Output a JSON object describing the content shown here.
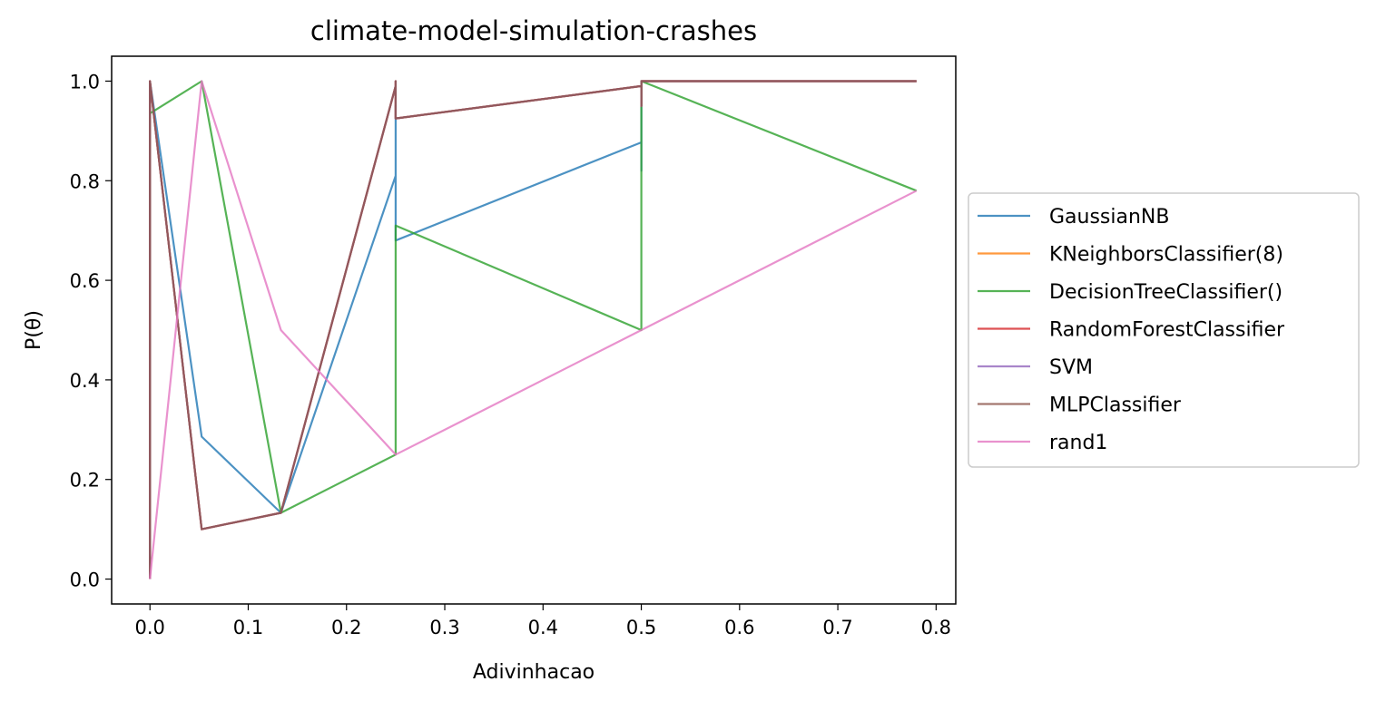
{
  "chart_data": {
    "type": "line",
    "title": "climate-model-simulation-crashes",
    "xlabel": "Adivinhacao",
    "ylabel": "P(θ)",
    "xlim": [
      -0.039,
      0.82
    ],
    "ylim": [
      -0.05,
      1.05
    ],
    "xticks": [
      0.0,
      0.1,
      0.2,
      0.3,
      0.4,
      0.5,
      0.6,
      0.7,
      0.8
    ],
    "xtick_labels": [
      "0.0",
      "0.1",
      "0.2",
      "0.3",
      "0.4",
      "0.5",
      "0.6",
      "0.7",
      "0.8"
    ],
    "yticks": [
      0.0,
      0.2,
      0.4,
      0.6,
      0.8,
      1.0
    ],
    "ytick_labels": [
      "0.0",
      "0.2",
      "0.4",
      "0.6",
      "0.8",
      "1.0"
    ],
    "grid": false,
    "legend_placement": "outside-right",
    "series": [
      {
        "name": "GaussianNB",
        "color": "#1f77b4",
        "x": [
          0.0,
          0.0,
          0.0,
          0.0526,
          0.1333,
          0.25,
          0.25,
          0.25,
          0.25,
          0.5,
          0.5,
          0.5,
          0.5,
          0.78
        ],
        "y": [
          0.0,
          0.0,
          1.0,
          0.286,
          0.133,
          0.81,
          0.95,
          0.68,
          0.68,
          0.877,
          0.82,
          0.99,
          1.0,
          1.0
        ]
      },
      {
        "name": "KNeighborsClassifier(8)",
        "color": "#ff7f0e",
        "x": [
          0.0,
          0.0,
          0.0526,
          0.1333,
          0.25,
          0.25,
          0.25,
          0.5,
          0.5,
          0.5,
          0.78
        ],
        "y": [
          0.0,
          1.0,
          0.1,
          0.133,
          0.99,
          1.0,
          0.925,
          0.99,
          0.95,
          1.0,
          1.0
        ]
      },
      {
        "name": "DecisionTreeClassifier()",
        "color": "#2ca02c",
        "x": [
          0.0,
          0.0,
          0.0526,
          0.1333,
          0.25,
          0.25,
          0.25,
          0.5,
          0.5,
          0.5,
          0.78
        ],
        "y": [
          0.0,
          0.935,
          1.0,
          0.133,
          0.25,
          0.25,
          0.71,
          0.5,
          0.5,
          1.0,
          0.78
        ]
      },
      {
        "name": "RandomForestClassifier",
        "color": "#d62728",
        "x": [
          0.0,
          0.0,
          0.0526,
          0.1333,
          0.25,
          0.25,
          0.25,
          0.5,
          0.5,
          0.5,
          0.78
        ],
        "y": [
          0.0,
          1.0,
          0.1,
          0.133,
          0.99,
          1.0,
          0.925,
          0.99,
          0.95,
          1.0,
          1.0
        ]
      },
      {
        "name": "SVM",
        "color": "#9467bd",
        "x": [
          0.0,
          0.0,
          0.0526,
          0.1333,
          0.25,
          0.25,
          0.25,
          0.5,
          0.5,
          0.5,
          0.78
        ],
        "y": [
          0.0,
          1.0,
          0.1,
          0.133,
          0.99,
          1.0,
          0.925,
          0.99,
          0.95,
          1.0,
          1.0
        ]
      },
      {
        "name": "MLPClassifier",
        "color": "#8c564b",
        "x": [
          0.0,
          0.0,
          0.0526,
          0.1333,
          0.25,
          0.25,
          0.25,
          0.5,
          0.5,
          0.5,
          0.78
        ],
        "y": [
          0.0,
          1.0,
          0.1,
          0.133,
          0.99,
          1.0,
          0.925,
          0.99,
          0.95,
          1.0,
          1.0
        ]
      },
      {
        "name": "rand1",
        "color": "#e377c2",
        "x": [
          0.0,
          0.0526,
          0.1333,
          0.25,
          0.5,
          0.78
        ],
        "y": [
          0.0,
          1.0,
          0.5,
          0.25,
          0.5,
          0.78
        ]
      }
    ]
  }
}
